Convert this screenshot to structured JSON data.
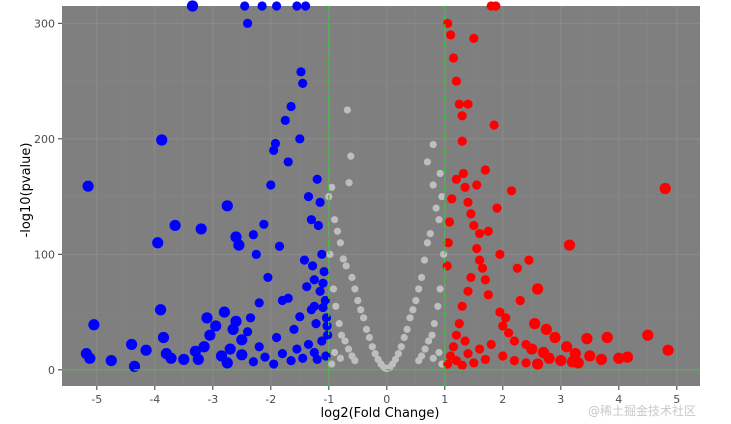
{
  "chart_data": {
    "type": "scatter",
    "title": "",
    "xlabel": "log2(Fold Change)",
    "ylabel": "-log10(pvalue)",
    "xlim": [
      -5.6,
      5.4
    ],
    "ylim": [
      -14,
      315
    ],
    "x_ticks": [
      -5,
      -4,
      -3,
      -2,
      -1,
      0,
      1,
      2,
      3,
      4,
      5
    ],
    "y_ticks": [
      0,
      100,
      200,
      300
    ],
    "grid": true,
    "thresholds": {
      "fold_change": [
        -1,
        1
      ],
      "pvalue_line": 0,
      "color": "#33cc33",
      "style": "dashed"
    },
    "colors": {
      "panel": "#7f7f7f",
      "grid": "#8c8c8c",
      "down": "#0000ff",
      "not_significant": "#bebebe",
      "up": "#ff0000"
    },
    "series": [
      {
        "group": "down",
        "color": "#0000ff",
        "points": [
          [
            -5.15,
            159
          ],
          [
            -5.05,
            39
          ],
          [
            -5.18,
            14
          ],
          [
            -5.12,
            10
          ],
          [
            -4.75,
            8
          ],
          [
            -4.4,
            22
          ],
          [
            -4.35,
            3
          ],
          [
            -4.15,
            17
          ],
          [
            -3.95,
            110
          ],
          [
            -3.9,
            52
          ],
          [
            -3.88,
            199
          ],
          [
            -3.85,
            28
          ],
          [
            -3.8,
            14
          ],
          [
            -3.72,
            10
          ],
          [
            -3.65,
            125
          ],
          [
            -3.5,
            9
          ],
          [
            -3.35,
            315
          ],
          [
            -3.3,
            16
          ],
          [
            -3.25,
            9
          ],
          [
            -3.2,
            122
          ],
          [
            -3.15,
            20
          ],
          [
            -3.1,
            45
          ],
          [
            -3.05,
            30
          ],
          [
            -2.95,
            38
          ],
          [
            -2.8,
            50
          ],
          [
            -2.75,
            142
          ],
          [
            -2.7,
            18
          ],
          [
            -2.65,
            35
          ],
          [
            -2.6,
            115
          ],
          [
            -2.55,
            108
          ],
          [
            -2.5,
            26
          ],
          [
            -2.45,
            315
          ],
          [
            -2.4,
            300
          ],
          [
            -2.35,
            45
          ],
          [
            -2.3,
            117
          ],
          [
            -2.25,
            100
          ],
          [
            -2.2,
            20
          ],
          [
            -2.15,
            315
          ],
          [
            -2.12,
            126
          ],
          [
            -2.05,
            80
          ],
          [
            -2.0,
            160
          ],
          [
            -1.95,
            190
          ],
          [
            -1.92,
            196
          ],
          [
            -1.9,
            315
          ],
          [
            -1.85,
            107
          ],
          [
            -1.8,
            60
          ],
          [
            -1.75,
            216
          ],
          [
            -1.7,
            180
          ],
          [
            -1.65,
            228
          ],
          [
            -1.6,
            35
          ],
          [
            -1.55,
            315
          ],
          [
            -1.5,
            200
          ],
          [
            -1.48,
            258
          ],
          [
            -1.45,
            248
          ],
          [
            -1.42,
            95
          ],
          [
            -1.4,
            315
          ],
          [
            -1.38,
            72
          ],
          [
            -1.35,
            150
          ],
          [
            -1.3,
            130
          ],
          [
            -1.28,
            90
          ],
          [
            -1.25,
            55
          ],
          [
            -1.22,
            40
          ],
          [
            -1.2,
            165
          ],
          [
            -1.18,
            125
          ],
          [
            -1.15,
            145
          ],
          [
            -1.12,
            100
          ],
          [
            -1.1,
            75
          ],
          [
            -1.08,
            85
          ],
          [
            -1.06,
            60
          ],
          [
            -1.04,
            45
          ],
          [
            -1.02,
            30
          ],
          [
            -2.6,
            42
          ],
          [
            -2.4,
            33
          ],
          [
            -2.2,
            58
          ],
          [
            -1.9,
            28
          ],
          [
            -1.7,
            62
          ],
          [
            -1.5,
            46
          ],
          [
            -1.3,
            52
          ],
          [
            -1.25,
            78
          ],
          [
            -1.15,
            68
          ],
          [
            -1.1,
            54
          ],
          [
            -2.85,
            12
          ],
          [
            -2.75,
            6
          ],
          [
            -2.5,
            13
          ],
          [
            -2.3,
            7
          ],
          [
            -2.1,
            11
          ],
          [
            -1.95,
            5
          ],
          [
            -1.8,
            14
          ],
          [
            -1.65,
            8
          ],
          [
            -1.55,
            18
          ],
          [
            -1.45,
            10
          ],
          [
            -1.35,
            22
          ],
          [
            -1.25,
            15
          ],
          [
            -1.2,
            9
          ],
          [
            -1.12,
            25
          ],
          [
            -1.05,
            12
          ],
          [
            -1.03,
            38
          ]
        ]
      },
      {
        "group": "not_significant",
        "color": "#bebebe",
        "points": [
          [
            -1.0,
            150
          ],
          [
            -0.95,
            158
          ],
          [
            -0.9,
            130
          ],
          [
            -0.85,
            120
          ],
          [
            -0.8,
            110
          ],
          [
            -0.75,
            96
          ],
          [
            -0.7,
            90
          ],
          [
            -0.68,
            225
          ],
          [
            -0.65,
            162
          ],
          [
            -0.62,
            185
          ],
          [
            -0.6,
            80
          ],
          [
            -0.55,
            70
          ],
          [
            -0.5,
            60
          ],
          [
            -0.45,
            52
          ],
          [
            -0.4,
            45
          ],
          [
            -0.35,
            35
          ],
          [
            -0.3,
            28
          ],
          [
            -0.25,
            20
          ],
          [
            -0.2,
            14
          ],
          [
            -0.15,
            9
          ],
          [
            -0.1,
            5
          ],
          [
            -0.05,
            2
          ],
          [
            0.0,
            1
          ],
          [
            0.05,
            2
          ],
          [
            0.1,
            5
          ],
          [
            0.15,
            9
          ],
          [
            0.2,
            14
          ],
          [
            0.25,
            20
          ],
          [
            0.3,
            28
          ],
          [
            0.35,
            35
          ],
          [
            0.4,
            45
          ],
          [
            0.45,
            52
          ],
          [
            0.5,
            60
          ],
          [
            0.55,
            70
          ],
          [
            0.6,
            80
          ],
          [
            0.65,
            95
          ],
          [
            0.7,
            110
          ],
          [
            0.75,
            118
          ],
          [
            0.7,
            180
          ],
          [
            0.8,
            160
          ],
          [
            0.8,
            195
          ],
          [
            0.85,
            140
          ],
          [
            0.9,
            130
          ],
          [
            0.92,
            170
          ],
          [
            0.95,
            150
          ],
          [
            0.98,
            100
          ],
          [
            -0.98,
            100
          ],
          [
            -0.92,
            70
          ],
          [
            -0.88,
            55
          ],
          [
            -0.82,
            40
          ],
          [
            -0.78,
            30
          ],
          [
            -0.72,
            25
          ],
          [
            -0.66,
            18
          ],
          [
            -0.6,
            12
          ],
          [
            -0.55,
            8
          ],
          [
            0.55,
            8
          ],
          [
            0.6,
            12
          ],
          [
            0.66,
            18
          ],
          [
            0.72,
            25
          ],
          [
            0.78,
            30
          ],
          [
            0.82,
            40
          ],
          [
            0.88,
            55
          ],
          [
            0.92,
            70
          ],
          [
            -0.9,
            15
          ],
          [
            -0.8,
            10
          ],
          [
            0.8,
            10
          ],
          [
            0.9,
            15
          ],
          [
            -0.95,
            5
          ],
          [
            0.95,
            5
          ]
        ]
      },
      {
        "group": "up",
        "color": "#ff0000",
        "points": [
          [
            1.05,
            5
          ],
          [
            1.1,
            12
          ],
          [
            1.15,
            20
          ],
          [
            1.2,
            30
          ],
          [
            1.25,
            40
          ],
          [
            1.3,
            55
          ],
          [
            1.35,
            25
          ],
          [
            1.4,
            68
          ],
          [
            1.45,
            80
          ],
          [
            1.05,
            300
          ],
          [
            1.1,
            290
          ],
          [
            1.15,
            270
          ],
          [
            1.2,
            250
          ],
          [
            1.25,
            230
          ],
          [
            1.3,
            220
          ],
          [
            1.32,
            170
          ],
          [
            1.35,
            158
          ],
          [
            1.4,
            145
          ],
          [
            1.45,
            135
          ],
          [
            1.5,
            125
          ],
          [
            1.55,
            105
          ],
          [
            1.6,
            95
          ],
          [
            1.65,
            88
          ],
          [
            1.7,
            78
          ],
          [
            1.75,
            65
          ],
          [
            1.8,
            315
          ],
          [
            1.85,
            212
          ],
          [
            1.88,
            315
          ],
          [
            1.9,
            140
          ],
          [
            1.95,
            50
          ],
          [
            2.0,
            38
          ],
          [
            2.05,
            45
          ],
          [
            2.1,
            32
          ],
          [
            2.15,
            155
          ],
          [
            2.2,
            25
          ],
          [
            2.3,
            60
          ],
          [
            2.4,
            22
          ],
          [
            2.5,
            18
          ],
          [
            2.6,
            70
          ],
          [
            2.7,
            15
          ],
          [
            2.8,
            10
          ],
          [
            3.0,
            8
          ],
          [
            3.15,
            108
          ],
          [
            3.2,
            7
          ],
          [
            3.3,
            6
          ],
          [
            3.45,
            27
          ],
          [
            3.8,
            28
          ],
          [
            4.15,
            11
          ],
          [
            4.5,
            30
          ],
          [
            4.8,
            157
          ],
          [
            4.85,
            17
          ],
          [
            1.5,
            287
          ],
          [
            1.6,
            118
          ],
          [
            1.7,
            173
          ],
          [
            1.4,
            230
          ],
          [
            1.3,
            198
          ],
          [
            1.2,
            165
          ],
          [
            1.12,
            148
          ],
          [
            1.08,
            128
          ],
          [
            1.06,
            110
          ],
          [
            1.04,
            90
          ],
          [
            1.55,
            160
          ],
          [
            1.75,
            120
          ],
          [
            1.95,
            100
          ],
          [
            2.25,
            88
          ],
          [
            2.45,
            95
          ],
          [
            2.55,
            40
          ],
          [
            2.75,
            35
          ],
          [
            2.9,
            28
          ],
          [
            3.1,
            20
          ],
          [
            3.25,
            14
          ],
          [
            3.5,
            12
          ],
          [
            3.7,
            9
          ],
          [
            4.0,
            10
          ],
          [
            1.2,
            8
          ],
          [
            1.4,
            14
          ],
          [
            1.6,
            18
          ],
          [
            1.8,
            22
          ],
          [
            2.0,
            12
          ],
          [
            2.2,
            8
          ],
          [
            2.4,
            6
          ],
          [
            2.6,
            5
          ],
          [
            1.3,
            4
          ],
          [
            1.5,
            6
          ],
          [
            1.7,
            9
          ]
        ]
      }
    ]
  },
  "watermark": "@稀土掘金技术社区"
}
